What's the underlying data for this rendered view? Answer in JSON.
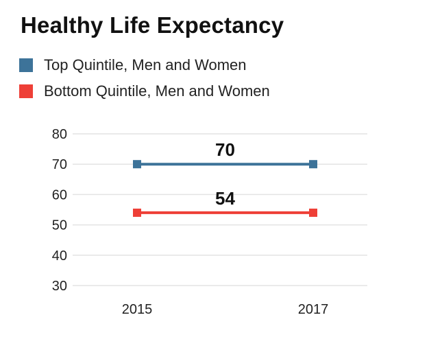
{
  "chart_data": {
    "type": "line",
    "title": "Healthy Life Expectancy",
    "x": [
      "2015",
      "2017"
    ],
    "ylim": [
      30,
      80
    ],
    "yticks": [
      80,
      70,
      60,
      50,
      40,
      30
    ],
    "grid": true,
    "legend_position": "top-left",
    "series": [
      {
        "name": "Top Quintile, Men and Women",
        "values": [
          70,
          70
        ],
        "color": "#3d7399",
        "label": "70"
      },
      {
        "name": "Bottom Quintile, Men and Women",
        "values": [
          54,
          54
        ],
        "color": "#ee3f37",
        "label": "54"
      }
    ]
  }
}
